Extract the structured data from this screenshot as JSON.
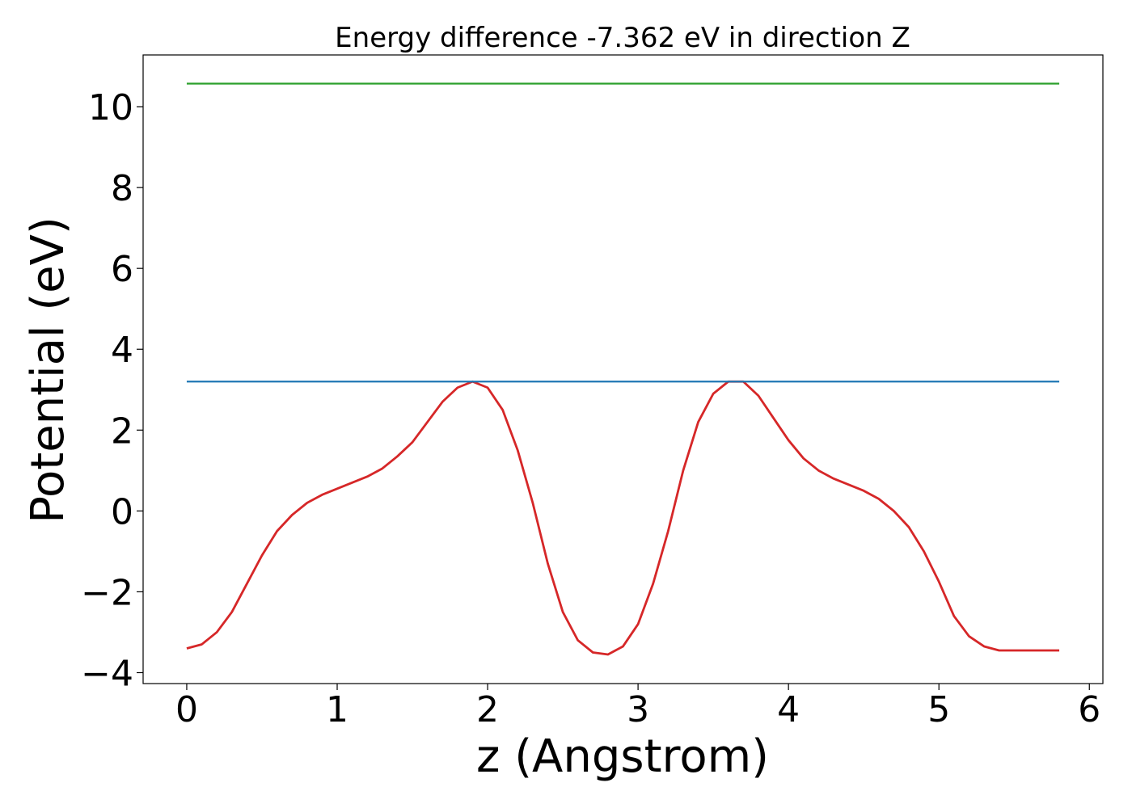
{
  "chart_data": {
    "type": "line",
    "title": "Energy difference -7.362 eV in direction Z",
    "xlabel": "z (Angstrom)",
    "ylabel": "Potential (eV)",
    "xlim": [
      -0.29,
      6.09
    ],
    "ylim": [
      -4.27,
      11.28
    ],
    "x_ticks": [
      0,
      1,
      2,
      3,
      4,
      5,
      6
    ],
    "x_tick_labels": [
      "0",
      "1",
      "2",
      "3",
      "4",
      "5",
      "6"
    ],
    "y_ticks": [
      -4,
      -2,
      0,
      2,
      4,
      6,
      8,
      10
    ],
    "y_tick_labels": [
      "−4",
      "−2",
      "0",
      "2",
      "4",
      "6",
      "8",
      "10"
    ],
    "grid": false,
    "legend": false,
    "series": [
      {
        "color": "#d62728",
        "kind": "curve",
        "x": [
          0.0,
          0.1,
          0.2,
          0.3,
          0.4,
          0.5,
          0.6,
          0.7,
          0.8,
          0.9,
          1.0,
          1.1,
          1.2,
          1.3,
          1.4,
          1.5,
          1.6,
          1.7,
          1.8,
          1.9,
          2.0,
          2.1,
          2.2,
          2.3,
          2.4,
          2.5,
          2.6,
          2.7,
          2.8,
          2.9,
          3.0,
          3.1,
          3.2,
          3.3,
          3.4,
          3.5,
          3.6,
          3.7,
          3.8,
          3.9,
          4.0,
          4.1,
          4.2,
          4.3,
          4.4,
          4.5,
          4.6,
          4.7,
          4.8,
          4.9,
          5.0,
          5.1,
          5.2,
          5.3,
          5.4,
          5.5,
          5.6,
          5.7,
          5.8
        ],
        "y": [
          -3.4,
          -3.3,
          -3.0,
          -2.5,
          -1.8,
          -1.1,
          -0.5,
          -0.1,
          0.2,
          0.4,
          0.55,
          0.7,
          0.85,
          1.05,
          1.35,
          1.7,
          2.2,
          2.7,
          3.05,
          3.2,
          3.05,
          2.5,
          1.5,
          0.2,
          -1.3,
          -2.5,
          -3.2,
          -3.5,
          -3.55,
          -3.35,
          -2.8,
          -1.8,
          -0.5,
          1.0,
          2.2,
          2.9,
          3.2,
          3.2,
          2.85,
          2.3,
          1.75,
          1.3,
          1.0,
          0.8,
          0.65,
          0.5,
          0.3,
          0.0,
          -0.4,
          -1.0,
          -1.75,
          -2.6,
          -3.1,
          -3.35,
          -3.45,
          -3.45,
          -3.45,
          -3.45,
          -3.45
        ]
      },
      {
        "color": "#1f77b4",
        "kind": "hline",
        "x": [
          0.0,
          5.8
        ],
        "y": [
          3.2,
          3.2
        ]
      },
      {
        "color": "#2ca02c",
        "kind": "hline",
        "x": [
          0.0,
          5.8
        ],
        "y": [
          10.57,
          10.57
        ]
      }
    ]
  }
}
